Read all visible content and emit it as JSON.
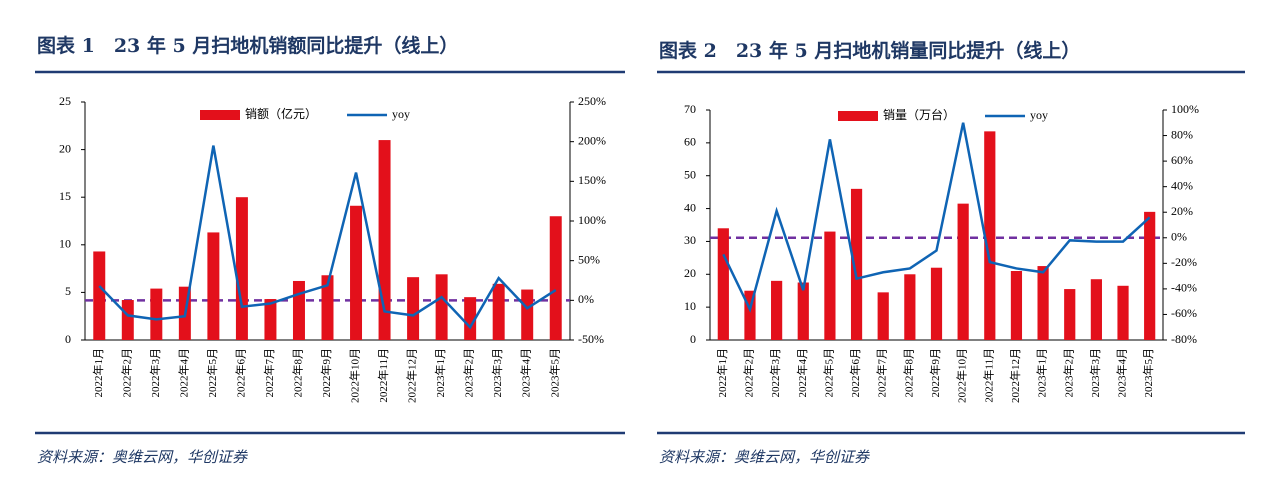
{
  "chart_data": [
    {
      "type": "bar_line",
      "title": "图表 1　23 年 5 月扫地机销额同比提升（线上）",
      "source": "资料来源：奥维云网，华创证券",
      "categories": [
        "2022年1月",
        "2022年2月",
        "2022年3月",
        "2022年4月",
        "2022年5月",
        "2022年6月",
        "2022年7月",
        "2022年8月",
        "2022年9月",
        "2022年10月",
        "2022年11月",
        "2022年12月",
        "2023年1月",
        "2023年2月",
        "2023年3月",
        "2023年4月",
        "2023年5月"
      ],
      "series": [
        {
          "name": "销额（亿元）",
          "type": "bar",
          "color": "#e3101b",
          "values": [
            9.3,
            4.2,
            5.4,
            5.6,
            11.3,
            15.0,
            4.3,
            6.2,
            6.8,
            14.1,
            21.0,
            6.6,
            6.9,
            4.5,
            5.9,
            5.3,
            13.0
          ]
        },
        {
          "name": "yoy",
          "type": "line",
          "axis": "y2",
          "color": "#0f64b4",
          "values": [
            18,
            -19,
            -24,
            -20,
            195,
            -8,
            -4,
            8,
            19,
            161,
            -14,
            -19,
            4,
            -34,
            28,
            -10,
            13
          ]
        }
      ],
      "ylim": [
        0,
        25
      ],
      "yticks": [
        0,
        5,
        10,
        15,
        20,
        25
      ],
      "y2lim": [
        -50,
        250
      ],
      "y2ticks": [
        {
          "value": -50,
          "label": "-50%"
        },
        {
          "value": 0,
          "label": "0%"
        },
        {
          "value": 50,
          "label": "50%"
        },
        {
          "value": 100,
          "label": "100%"
        },
        {
          "value": 150,
          "label": "150%"
        },
        {
          "value": 200,
          "label": "200%"
        },
        {
          "value": 250,
          "label": "250%"
        }
      ],
      "reference_line": {
        "value": 0,
        "axis": "y2",
        "color": "#7030a0"
      }
    },
    {
      "type": "bar_line",
      "title": "图表 2　23 年 5 月扫地机销量同比提升（线上）",
      "source": "资料来源：奥维云网，华创证券",
      "categories": [
        "2022年1月",
        "2022年2月",
        "2022年3月",
        "2022年4月",
        "2022年5月",
        "2022年6月",
        "2022年7月",
        "2022年8月",
        "2022年9月",
        "2022年10月",
        "2022年11月",
        "2022年12月",
        "2023年1月",
        "2023年2月",
        "2023年3月",
        "2023年4月",
        "2023年5月"
      ],
      "series": [
        {
          "name": "销量（万台）",
          "type": "bar",
          "color": "#e3101b",
          "values": [
            34,
            15,
            18,
            17.5,
            33,
            46,
            14.5,
            20,
            22,
            41.5,
            63.5,
            21,
            22.5,
            15.5,
            18.5,
            16.5,
            39
          ]
        },
        {
          "name": "yoy",
          "type": "line",
          "axis": "y2",
          "color": "#0f64b4",
          "values": [
            -13,
            -56,
            21,
            -41,
            77,
            -32,
            -27,
            -24,
            -10,
            90,
            -19,
            -24,
            -27,
            -2,
            -3,
            -3,
            16
          ]
        }
      ],
      "ylim": [
        0,
        70
      ],
      "yticks": [
        0,
        10,
        20,
        30,
        40,
        50,
        60,
        70
      ],
      "y2lim": [
        -80,
        100
      ],
      "y2ticks": [
        {
          "value": -80,
          "label": "-80%"
        },
        {
          "value": -60,
          "label": "-60%"
        },
        {
          "value": -40,
          "label": "-40%"
        },
        {
          "value": -20,
          "label": "-20%"
        },
        {
          "value": 0,
          "label": "0%"
        },
        {
          "value": 20,
          "label": "20%"
        },
        {
          "value": 40,
          "label": "40%"
        },
        {
          "value": 60,
          "label": "60%"
        },
        {
          "value": 80,
          "label": "80%"
        },
        {
          "value": 100,
          "label": "100%"
        }
      ],
      "reference_line": {
        "value": 0,
        "axis": "y2",
        "color": "#7030a0"
      }
    }
  ]
}
